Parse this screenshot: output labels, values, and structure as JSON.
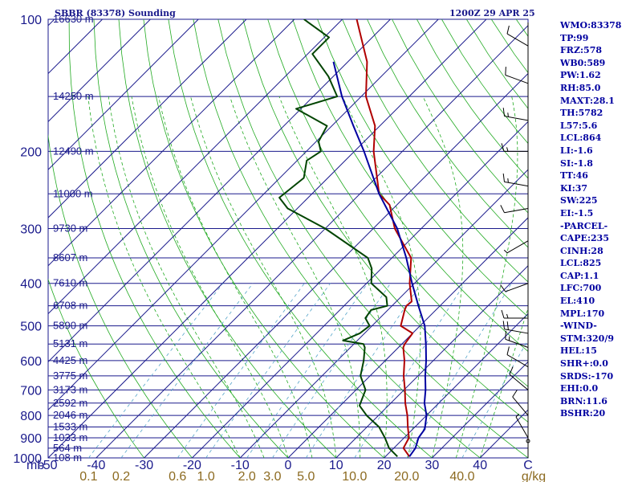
{
  "header": {
    "station": "SBBR (83378) Sounding",
    "time": "1200Z 29 APR 25"
  },
  "indices": [
    "WMO:83378",
    "TP:99",
    "FRZ:578",
    "WB0:589",
    "PW:1.62",
    "RH:85.0",
    "MAXT:28.1",
    "TH:5782",
    "L57:5.6",
    "LCL:864",
    "LI:-1.6",
    "SI:-1.8",
    "TT:46",
    "KI:37",
    "SW:225",
    "EI:-1.5",
    "-PARCEL-",
    "CAPE:235",
    "CINH:28",
    "LCL:825",
    "CAP:1.1",
    "LFC:700",
    "EL:410",
    "MPL:170",
    "-WIND-",
    "STM:320/9",
    "HEL:15",
    "SHR+:0.0",
    "SRDS:-170",
    "EHI:0.0",
    "BRN:11.6",
    "BSHR:20"
  ],
  "chart_data": {
    "type": "line",
    "title": "SBBR (83378) Sounding",
    "x_axis_unit": "mb",
    "pressure_ticks": [
      {
        "p": 100,
        "label": "100"
      },
      {
        "p": 200,
        "label": "200"
      },
      {
        "p": 300,
        "label": "300"
      },
      {
        "p": 400,
        "label": "400"
      },
      {
        "p": 500,
        "label": "500"
      },
      {
        "p": 600,
        "label": "600"
      },
      {
        "p": 700,
        "label": "700"
      },
      {
        "p": 800,
        "label": "800"
      },
      {
        "p": 900,
        "label": "900"
      },
      {
        "p": 1000,
        "label": "1000"
      }
    ],
    "temperature_ticks": [
      "-50",
      "-40",
      "-30",
      "-20",
      "-10",
      "0",
      "10",
      "20",
      "30",
      "40",
      "C"
    ],
    "temperature_values": [
      -50,
      -40,
      -30,
      -20,
      -10,
      0,
      10,
      20,
      30,
      40
    ],
    "mixing_ratio_labels": [
      {
        "w": 0.1,
        "label": "0.1"
      },
      {
        "w": 0.2,
        "label": "0.2"
      },
      {
        "w": 0.6,
        "label": "0.6"
      },
      {
        "w": 1.0,
        "label": "1.0"
      },
      {
        "w": 2.0,
        "label": "2.0"
      },
      {
        "w": 3.0,
        "label": "3.0"
      },
      {
        "w": 5.0,
        "label": "5.0"
      },
      {
        "w": 10.0,
        "label": "10.0"
      },
      {
        "w": 20.0,
        "label": "20.0"
      },
      {
        "w": 40.0,
        "label": "40.0"
      },
      {
        "w": null,
        "label": "g/kg"
      }
    ],
    "height_labels": [
      {
        "p": 100,
        "label": "16630 m"
      },
      {
        "p": 150,
        "label": "14250 m"
      },
      {
        "p": 200,
        "label": "12490 m"
      },
      {
        "p": 250,
        "label": "11000 m"
      },
      {
        "p": 300,
        "label": "9730 m"
      },
      {
        "p": 350,
        "label": "8607 m"
      },
      {
        "p": 400,
        "label": "7610 m"
      },
      {
        "p": 450,
        "label": "6708 m"
      },
      {
        "p": 500,
        "label": "5890 m"
      },
      {
        "p": 550,
        "label": "5131 m"
      },
      {
        "p": 600,
        "label": "4425 m"
      },
      {
        "p": 650,
        "label": "3775 m"
      },
      {
        "p": 700,
        "label": "3173 m"
      },
      {
        "p": 750,
        "label": "2592 m"
      },
      {
        "p": 800,
        "label": "2046 m"
      },
      {
        "p": 850,
        "label": "1533 m"
      },
      {
        "p": 900,
        "label": "1033 m"
      },
      {
        "p": 950,
        "label": "564 m"
      },
      {
        "p": 1000,
        "label": "108 m"
      }
    ],
    "temp_ranges": {
      "bottom": [
        -50,
        50
      ]
    },
    "pressure_range": [
      1000,
      100
    ],
    "series": [
      {
        "kind": "temperature",
        "color": "#b00000",
        "points": [
          [
            993,
            25.0
          ],
          [
            950,
            22.0
          ],
          [
            900,
            21.0
          ],
          [
            850,
            18.5
          ],
          [
            800,
            16.0
          ],
          [
            750,
            13.0
          ],
          [
            700,
            10.2
          ],
          [
            650,
            7.0
          ],
          [
            600,
            4.0
          ],
          [
            560,
            1.0
          ],
          [
            550,
            0.6
          ],
          [
            520,
            0.0
          ],
          [
            500,
            -4.0
          ],
          [
            460,
            -6.5
          ],
          [
            450,
            -7.0
          ],
          [
            440,
            -6.8
          ],
          [
            400,
            -11.0
          ],
          [
            350,
            -16.0
          ],
          [
            300,
            -25.5
          ],
          [
            285,
            -28.0
          ],
          [
            265,
            -31.5
          ],
          [
            250,
            -36.0
          ],
          [
            200,
            -46.0
          ],
          [
            175,
            -51.0
          ],
          [
            150,
            -59.0
          ],
          [
            125,
            -66.0
          ],
          [
            100,
            -77.0
          ]
        ]
      },
      {
        "kind": "dewpoint",
        "color": "#004400",
        "points": [
          [
            993,
            22.5
          ],
          [
            950,
            19.0
          ],
          [
            900,
            16.0
          ],
          [
            850,
            12.5
          ],
          [
            800,
            7.5
          ],
          [
            760,
            4.0
          ],
          [
            700,
            2.0
          ],
          [
            650,
            -2.0
          ],
          [
            600,
            -4.5
          ],
          [
            560,
            -7.0
          ],
          [
            550,
            -8.0
          ],
          [
            540,
            -13.0
          ],
          [
            520,
            -11.0
          ],
          [
            500,
            -10.5
          ],
          [
            480,
            -13.0
          ],
          [
            460,
            -13.5
          ],
          [
            450,
            -11.0
          ],
          [
            430,
            -13.0
          ],
          [
            400,
            -19.0
          ],
          [
            370,
            -22.0
          ],
          [
            350,
            -25.0
          ],
          [
            300,
            -40.0
          ],
          [
            270,
            -52.0
          ],
          [
            255,
            -56.0
          ],
          [
            230,
            -55.0
          ],
          [
            210,
            -58.0
          ],
          [
            200,
            -57.0
          ],
          [
            190,
            -59.5
          ],
          [
            175,
            -61.0
          ],
          [
            160,
            -71.0
          ],
          [
            150,
            -65.0
          ],
          [
            135,
            -71.0
          ],
          [
            120,
            -79.0
          ],
          [
            110,
            -79.0
          ],
          [
            100,
            -88.0
          ]
        ]
      },
      {
        "kind": "parcel",
        "color": "#0000a0",
        "points": [
          [
            993,
            25.0
          ],
          [
            950,
            24.5
          ],
          [
            900,
            23.0
          ],
          [
            860,
            22.5
          ],
          [
            800,
            20.0
          ],
          [
            750,
            17.0
          ],
          [
            700,
            14.5
          ],
          [
            650,
            11.5
          ],
          [
            600,
            8.5
          ],
          [
            550,
            5.0
          ],
          [
            500,
            1.0
          ],
          [
            450,
            -4.5
          ],
          [
            400,
            -10.5
          ],
          [
            350,
            -17.0
          ],
          [
            300,
            -25.0
          ],
          [
            250,
            -36.0
          ],
          [
            200,
            -48.0
          ],
          [
            175,
            -55.5
          ],
          [
            150,
            -64.0
          ],
          [
            125,
            -73.0
          ]
        ]
      }
    ],
    "wind_barbs": [
      {
        "p": 115,
        "dir": 300,
        "spd": 10
      },
      {
        "p": 140,
        "dir": 290,
        "spd": 10
      },
      {
        "p": 170,
        "dir": 280,
        "spd": 15
      },
      {
        "p": 200,
        "dir": 270,
        "spd": 15
      },
      {
        "p": 240,
        "dir": 280,
        "spd": 15
      },
      {
        "p": 270,
        "dir": 260,
        "spd": 10
      },
      {
        "p": 320,
        "dir": 240,
        "spd": 5
      },
      {
        "p": 400,
        "dir": 250,
        "spd": 10
      },
      {
        "p": 480,
        "dir": 270,
        "spd": 15
      },
      {
        "p": 520,
        "dir": 280,
        "spd": 20
      },
      {
        "p": 560,
        "dir": 290,
        "spd": 15
      },
      {
        "p": 620,
        "dir": 300,
        "spd": 10
      },
      {
        "p": 700,
        "dir": 310,
        "spd": 10
      },
      {
        "p": 800,
        "dir": 320,
        "spd": 10
      },
      {
        "p": 900,
        "dir": 330,
        "spd": 5
      }
    ],
    "grid": true
  },
  "colors": {
    "isobar": "#1a1a8c",
    "isotherm": "#1a1a8c",
    "dry_adiabat": "#22aa22",
    "moist_adiabat": "#22aa22",
    "mixing_ratio": "#55a4c9",
    "temp_tick_text": "#1a1a8c",
    "mixing_ratio_text": "#8c6a20"
  }
}
